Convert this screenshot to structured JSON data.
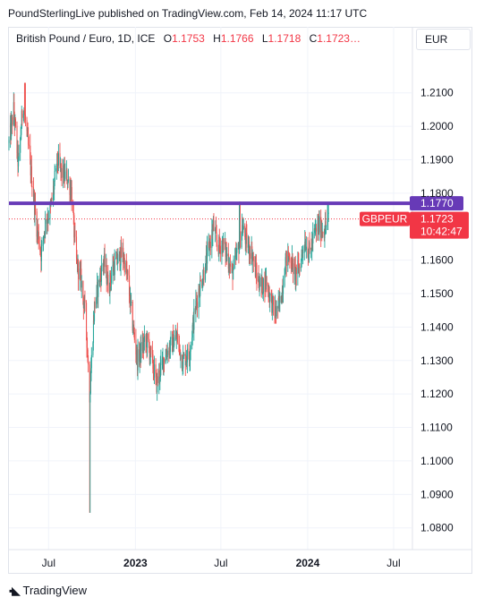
{
  "header": {
    "published": "PoundSterlingLive published on TradingView.com, Feb 14, 2024 11:17 UTC"
  },
  "legend": {
    "symbol": "British Pound / Euro, 1D, ICE",
    "o_label": "O",
    "o_value": "1.1753",
    "h_label": "H",
    "h_value": "1.1766",
    "l_label": "L",
    "l_value": "1.1718",
    "c_label": "C",
    "c_value": "1.1723…"
  },
  "currency_button": "EUR",
  "footer": {
    "brand": "TradingView",
    "logo": "tradingview-logo-icon"
  },
  "colors": {
    "up": "#26a69a",
    "down": "#ef5350",
    "resistance": "#673ab7",
    "price_tag": "#f23645",
    "grid": "#f0f3fa",
    "text": "#131722"
  },
  "chart_data": {
    "type": "candlestick",
    "symbol": "GBPEUR",
    "ylim": [
      1.0735,
      1.2225
    ],
    "y_ticks": [
      "1.2100",
      "1.2000",
      "1.1900",
      "1.1800",
      "1.1600",
      "1.1500",
      "1.1400",
      "1.1300",
      "1.1200",
      "1.1100",
      "1.1000",
      "1.0900",
      "1.0800"
    ],
    "x_ticks": [
      {
        "label": "Jul",
        "date": "2022-07-01",
        "bold": false
      },
      {
        "label": "2023",
        "date": "2023-01-01",
        "bold": true
      },
      {
        "label": "Jul",
        "date": "2023-07-01",
        "bold": false
      },
      {
        "label": "2024",
        "date": "2024-01-01",
        "bold": true
      },
      {
        "label": "Jul",
        "date": "2024-07-01",
        "bold": false
      }
    ],
    "xlim": [
      "2022-04-08",
      "2024-08-08"
    ],
    "price_line": {
      "label": "1.1770",
      "value": 1.177
    },
    "last_price": {
      "value": 1.1723,
      "label": "1.1723",
      "countdown": "10:42:47",
      "symbol_label": "GBPEUR"
    },
    "anchors": [
      {
        "date": "2022-04-08",
        "value": 1.195
      },
      {
        "date": "2022-04-18",
        "value": 1.205
      },
      {
        "date": "2022-04-28",
        "value": 1.188
      },
      {
        "date": "2022-05-08",
        "value": 1.208
      },
      {
        "date": "2022-05-18",
        "value": 1.195
      },
      {
        "date": "2022-05-28",
        "value": 1.182
      },
      {
        "date": "2022-06-06",
        "value": 1.17
      },
      {
        "date": "2022-06-15",
        "value": 1.162
      },
      {
        "date": "2022-06-25",
        "value": 1.172
      },
      {
        "date": "2022-07-05",
        "value": 1.175
      },
      {
        "date": "2022-07-20",
        "value": 1.19
      },
      {
        "date": "2022-07-28",
        "value": 1.186
      },
      {
        "date": "2022-08-08",
        "value": 1.185
      },
      {
        "date": "2022-08-18",
        "value": 1.181
      },
      {
        "date": "2022-08-28",
        "value": 1.16
      },
      {
        "date": "2022-09-08",
        "value": 1.154
      },
      {
        "date": "2022-09-18",
        "value": 1.142
      },
      {
        "date": "2022-09-26",
        "value": 1.12
      },
      {
        "date": "2022-10-06",
        "value": 1.146
      },
      {
        "date": "2022-10-16",
        "value": 1.154
      },
      {
        "date": "2022-10-26",
        "value": 1.16
      },
      {
        "date": "2022-11-05",
        "value": 1.152
      },
      {
        "date": "2022-11-15",
        "value": 1.158
      },
      {
        "date": "2022-11-25",
        "value": 1.16
      },
      {
        "date": "2022-12-05",
        "value": 1.162
      },
      {
        "date": "2022-12-15",
        "value": 1.155
      },
      {
        "date": "2022-12-25",
        "value": 1.142
      },
      {
        "date": "2023-01-05",
        "value": 1.13
      },
      {
        "date": "2023-01-15",
        "value": 1.134
      },
      {
        "date": "2023-01-25",
        "value": 1.136
      },
      {
        "date": "2023-02-05",
        "value": 1.13
      },
      {
        "date": "2023-02-15",
        "value": 1.123
      },
      {
        "date": "2023-02-28",
        "value": 1.13
      },
      {
        "date": "2023-03-10",
        "value": 1.133
      },
      {
        "date": "2023-03-20",
        "value": 1.135
      },
      {
        "date": "2023-03-30",
        "value": 1.137
      },
      {
        "date": "2023-04-10",
        "value": 1.13
      },
      {
        "date": "2023-04-25",
        "value": 1.132
      },
      {
        "date": "2023-05-05",
        "value": 1.143
      },
      {
        "date": "2023-05-15",
        "value": 1.151
      },
      {
        "date": "2023-05-25",
        "value": 1.156
      },
      {
        "date": "2023-06-05",
        "value": 1.163
      },
      {
        "date": "2023-06-15",
        "value": 1.17
      },
      {
        "date": "2023-06-25",
        "value": 1.164
      },
      {
        "date": "2023-07-05",
        "value": 1.165
      },
      {
        "date": "2023-07-15",
        "value": 1.161
      },
      {
        "date": "2023-07-25",
        "value": 1.156
      },
      {
        "date": "2023-08-05",
        "value": 1.162
      },
      {
        "date": "2023-08-15",
        "value": 1.17
      },
      {
        "date": "2023-08-25",
        "value": 1.165
      },
      {
        "date": "2023-09-05",
        "value": 1.162
      },
      {
        "date": "2023-09-15",
        "value": 1.155
      },
      {
        "date": "2023-09-25",
        "value": 1.152
      },
      {
        "date": "2023-10-05",
        "value": 1.154
      },
      {
        "date": "2023-10-15",
        "value": 1.148
      },
      {
        "date": "2023-10-25",
        "value": 1.144
      },
      {
        "date": "2023-11-05",
        "value": 1.148
      },
      {
        "date": "2023-11-15",
        "value": 1.16
      },
      {
        "date": "2023-11-25",
        "value": 1.161
      },
      {
        "date": "2023-12-05",
        "value": 1.156
      },
      {
        "date": "2023-12-15",
        "value": 1.158
      },
      {
        "date": "2023-12-25",
        "value": 1.166
      },
      {
        "date": "2024-01-05",
        "value": 1.162
      },
      {
        "date": "2024-01-15",
        "value": 1.168
      },
      {
        "date": "2024-01-25",
        "value": 1.17
      },
      {
        "date": "2024-02-05",
        "value": 1.169
      },
      {
        "date": "2024-02-14",
        "value": 1.1723
      }
    ],
    "extremes": [
      {
        "date": "2022-05-12",
        "value": 1.213
      },
      {
        "date": "2022-09-26",
        "value": 1.0845
      },
      {
        "date": "2023-08-10",
        "value": 1.1775
      },
      {
        "date": "2024-02-12",
        "value": 1.1766
      }
    ]
  }
}
